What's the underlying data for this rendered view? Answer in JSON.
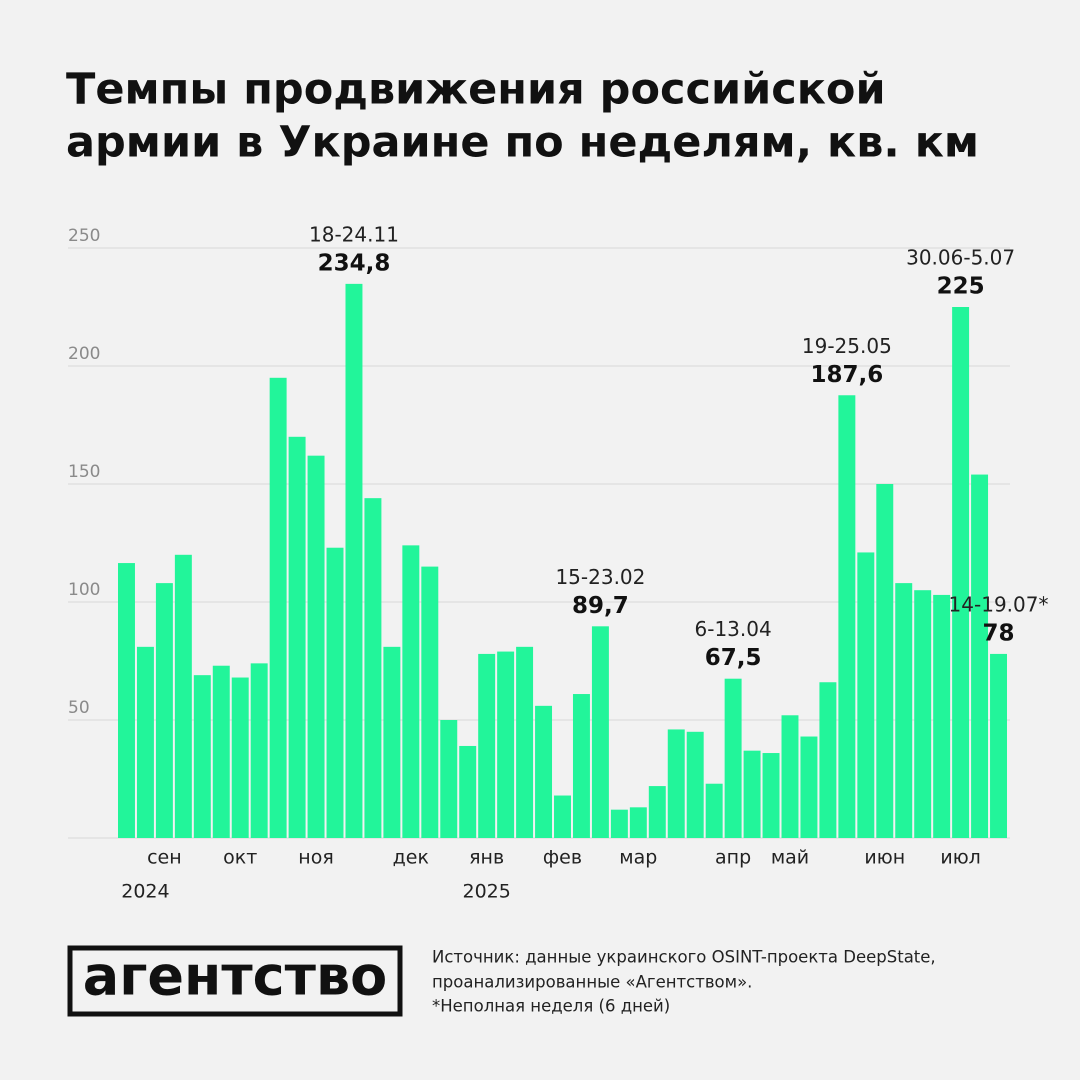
{
  "chart_data": {
    "type": "bar",
    "title": [
      "Темпы продвижения российской",
      "армии в Украине по неделям, кв. км"
    ],
    "categories": [
      null,
      null,
      "сен",
      null,
      null,
      null,
      "окт",
      null,
      null,
      null,
      "ноя",
      null,
      null,
      null,
      null,
      "дек",
      null,
      null,
      null,
      "янв",
      null,
      null,
      null,
      "фев",
      null,
      null,
      null,
      "мар",
      null,
      null,
      null,
      null,
      "апр",
      null,
      null,
      "май",
      null,
      null,
      null,
      null,
      "июн",
      null,
      null,
      null,
      "июл",
      null,
      null
    ],
    "years": [
      null,
      "2024",
      null,
      null,
      null,
      null,
      null,
      null,
      null,
      null,
      null,
      null,
      null,
      null,
      null,
      null,
      null,
      null,
      null,
      "2025",
      null,
      null,
      null,
      null,
      null,
      null,
      null,
      null,
      null,
      null,
      null,
      null,
      null,
      null,
      null,
      null,
      null,
      null,
      null,
      null,
      null,
      null,
      null,
      null,
      null,
      null,
      null
    ],
    "values": [
      116.5,
      81,
      108,
      120,
      69,
      73,
      68,
      74,
      195,
      170,
      162,
      123,
      234.8,
      144,
      81,
      124,
      115,
      50,
      39,
      78,
      79,
      81,
      56,
      18,
      61,
      89.7,
      12,
      13,
      22,
      46,
      45,
      23,
      67.5,
      37,
      36,
      52,
      43,
      66,
      187.6,
      121,
      150,
      108,
      105,
      103,
      225,
      154,
      78
    ],
    "value_labels": [
      null,
      null,
      null,
      null,
      null,
      null,
      null,
      null,
      null,
      null,
      null,
      null,
      "234,8",
      null,
      null,
      null,
      null,
      null,
      null,
      null,
      null,
      null,
      null,
      null,
      null,
      "89,7",
      null,
      null,
      null,
      null,
      null,
      null,
      "67,5",
      null,
      null,
      null,
      null,
      null,
      "187,6",
      null,
      null,
      null,
      null,
      null,
      "225",
      null,
      "78"
    ],
    "period_labels": [
      null,
      null,
      null,
      null,
      null,
      null,
      null,
      null,
      null,
      null,
      null,
      null,
      "18-24.11",
      null,
      null,
      null,
      null,
      null,
      null,
      null,
      null,
      null,
      null,
      null,
      null,
      "15-23.02",
      null,
      null,
      null,
      null,
      null,
      null,
      "6-13.04",
      null,
      null,
      null,
      null,
      null,
      "19-25.05",
      null,
      null,
      null,
      null,
      null,
      "30.06-5.07",
      null,
      "14-19.07*"
    ],
    "color": "#22f59a",
    "ylim": [
      0,
      250
    ],
    "yticks": [
      50,
      100,
      150,
      200,
      250
    ],
    "grid": true
  },
  "footer": {
    "logo": "агентство",
    "source": [
      "Источник: данные украинского OSINT-проекта DeepState,",
      "проанализированные «Агентством».",
      "*Неполная неделя (6 дней)"
    ]
  }
}
